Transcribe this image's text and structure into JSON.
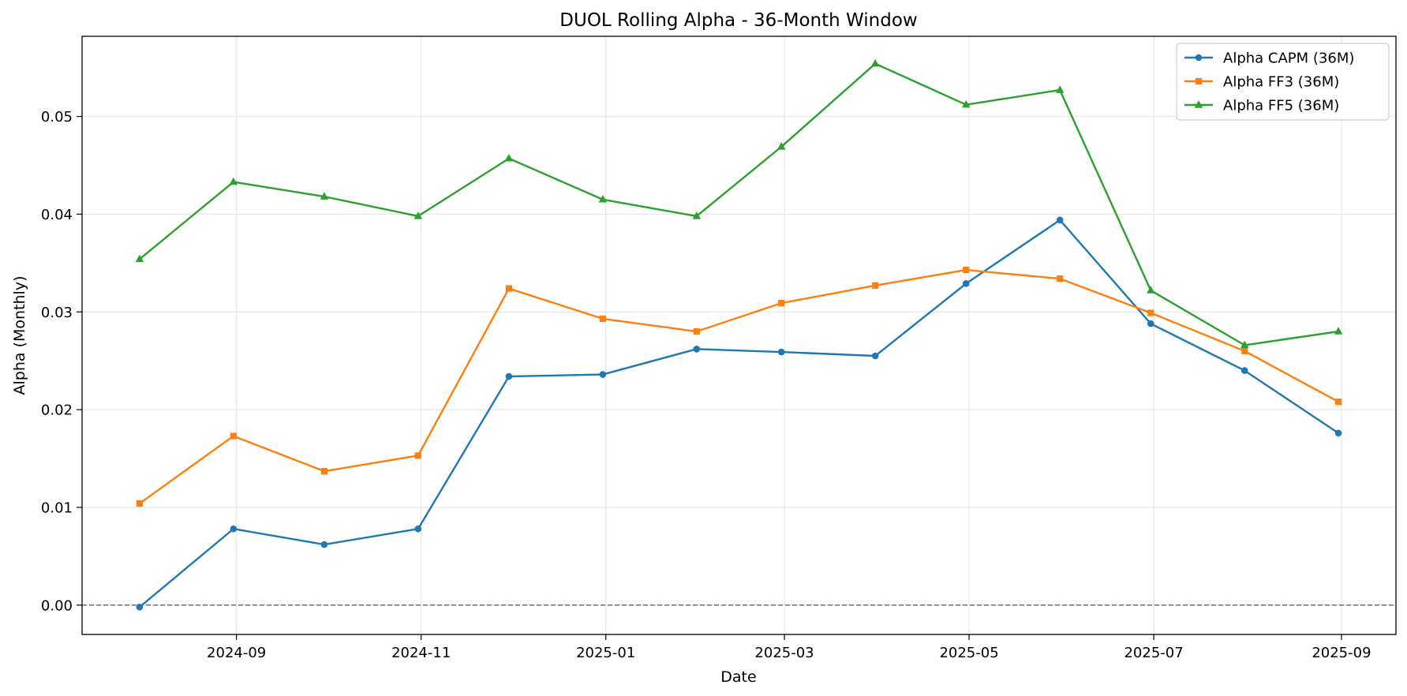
{
  "chart_data": {
    "type": "line",
    "title": "DUOL Rolling Alpha - 36-Month Window",
    "xlabel": "Date",
    "ylabel": "Alpha (Monthly)",
    "x": [
      "2024-07-31",
      "2024-08-31",
      "2024-09-30",
      "2024-10-31",
      "2024-11-30",
      "2024-12-31",
      "2025-01-31",
      "2025-02-28",
      "2025-03-31",
      "2025-04-30",
      "2025-05-31",
      "2025-06-30",
      "2025-07-31",
      "2025-08-31"
    ],
    "x_ticks": [
      "2024-09-01",
      "2024-11-01",
      "2025-01-01",
      "2025-03-01",
      "2025-05-01",
      "2025-07-01",
      "2025-09-01"
    ],
    "x_tick_labels": [
      "2024-09",
      "2024-11",
      "2025-01",
      "2025-03",
      "2025-05",
      "2025-07",
      "2025-09"
    ],
    "xlim": [
      "2024-07-12",
      "2025-09-19"
    ],
    "ylim": [
      -0.003,
      0.0582
    ],
    "y_ticks": [
      0.0,
      0.01,
      0.02,
      0.03,
      0.04,
      0.05
    ],
    "y_tick_labels": [
      "0.00",
      "0.01",
      "0.02",
      "0.03",
      "0.04",
      "0.05"
    ],
    "grid": true,
    "reference_line": {
      "y": 0.0,
      "style": "dashed",
      "color": "#555555"
    },
    "legend_position": "top-right",
    "series": [
      {
        "name": "Alpha CAPM (36M)",
        "color": "#1f77b4",
        "marker": "circle",
        "values": [
          -0.0002,
          0.0078,
          0.0062,
          0.0078,
          0.0234,
          0.0236,
          0.0262,
          0.0259,
          0.0255,
          0.0329,
          0.0394,
          0.0288,
          0.024,
          0.0176
        ]
      },
      {
        "name": "Alpha FF3 (36M)",
        "color": "#ff7f0e",
        "marker": "square",
        "values": [
          0.0104,
          0.0173,
          0.0137,
          0.0153,
          0.0324,
          0.0293,
          0.028,
          0.0309,
          0.0327,
          0.0343,
          0.0334,
          0.0299,
          0.026,
          0.0208
        ]
      },
      {
        "name": "Alpha FF5 (36M)",
        "color": "#2ca02c",
        "marker": "triangle",
        "values": [
          0.0354,
          0.0433,
          0.0418,
          0.0398,
          0.0457,
          0.0415,
          0.0398,
          0.0469,
          0.0554,
          0.0512,
          0.0527,
          0.0322,
          0.0266,
          0.028
        ]
      }
    ]
  }
}
